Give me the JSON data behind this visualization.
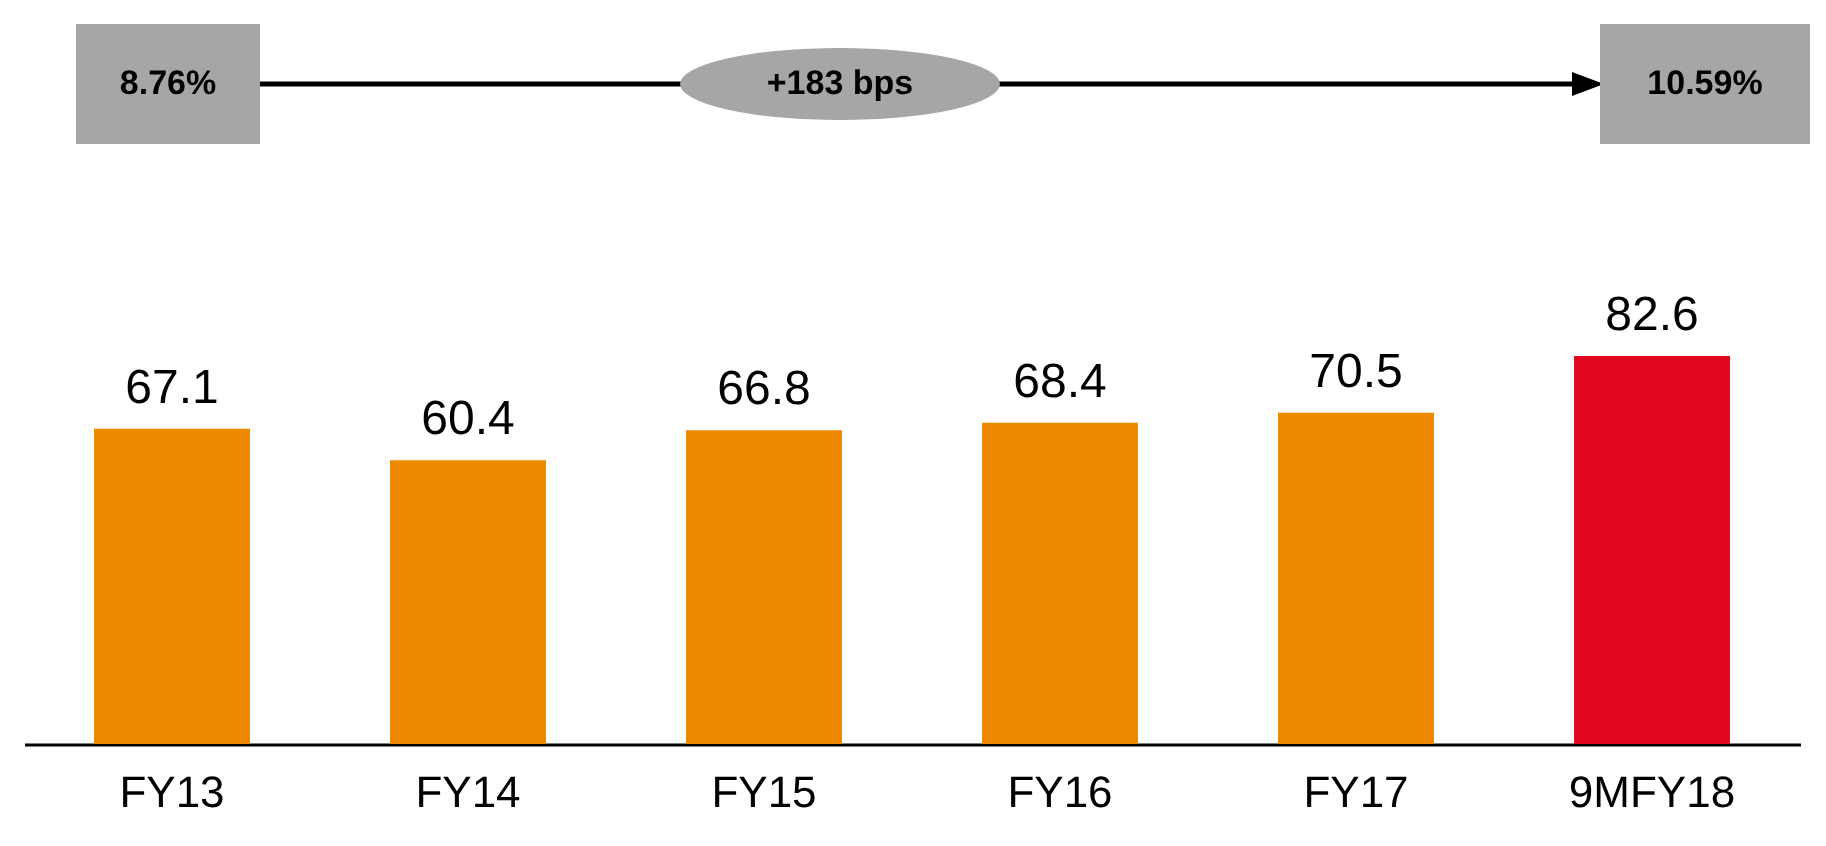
{
  "chart_data": {
    "type": "bar",
    "categories": [
      "FY13",
      "FY14",
      "FY15",
      "FY16",
      "FY17",
      "9MFY18"
    ],
    "values": [
      67.1,
      60.4,
      66.8,
      68.4,
      70.5,
      82.6
    ],
    "colors": [
      "#ee8a00",
      "#ee8a00",
      "#ee8a00",
      "#ee8a00",
      "#ee8a00",
      "#e0071f"
    ],
    "data_labels": true,
    "annotations": [
      "8.76%",
      "+183 bps",
      "10.59%"
    ]
  }
}
